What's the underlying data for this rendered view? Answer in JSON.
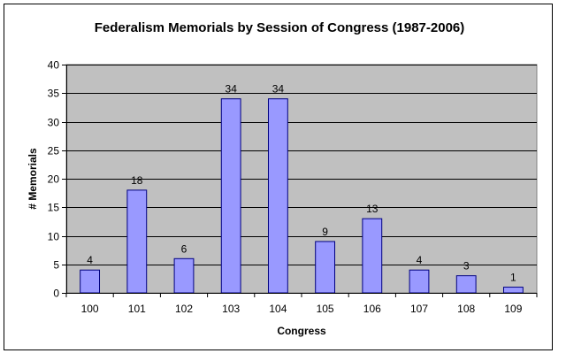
{
  "chart_data": {
    "type": "bar",
    "title": "Federalism Memorials by Session of Congress (1987-2006)",
    "xlabel": "Congress",
    "ylabel": "# Memorials",
    "categories": [
      "100",
      "101",
      "102",
      "103",
      "104",
      "105",
      "106",
      "107",
      "108",
      "109"
    ],
    "values": [
      4,
      18,
      6,
      34,
      34,
      9,
      13,
      4,
      3,
      1
    ],
    "ylim": [
      0,
      40
    ],
    "yticks": [
      0,
      5,
      10,
      15,
      20,
      25,
      30,
      35,
      40
    ],
    "grid": true,
    "legend": "none",
    "data_labels": true,
    "colors": {
      "plot_background": "#c0c0c0",
      "bar_fill": "#9999ff",
      "bar_stroke": "#000080",
      "gridline": "#000000"
    }
  }
}
